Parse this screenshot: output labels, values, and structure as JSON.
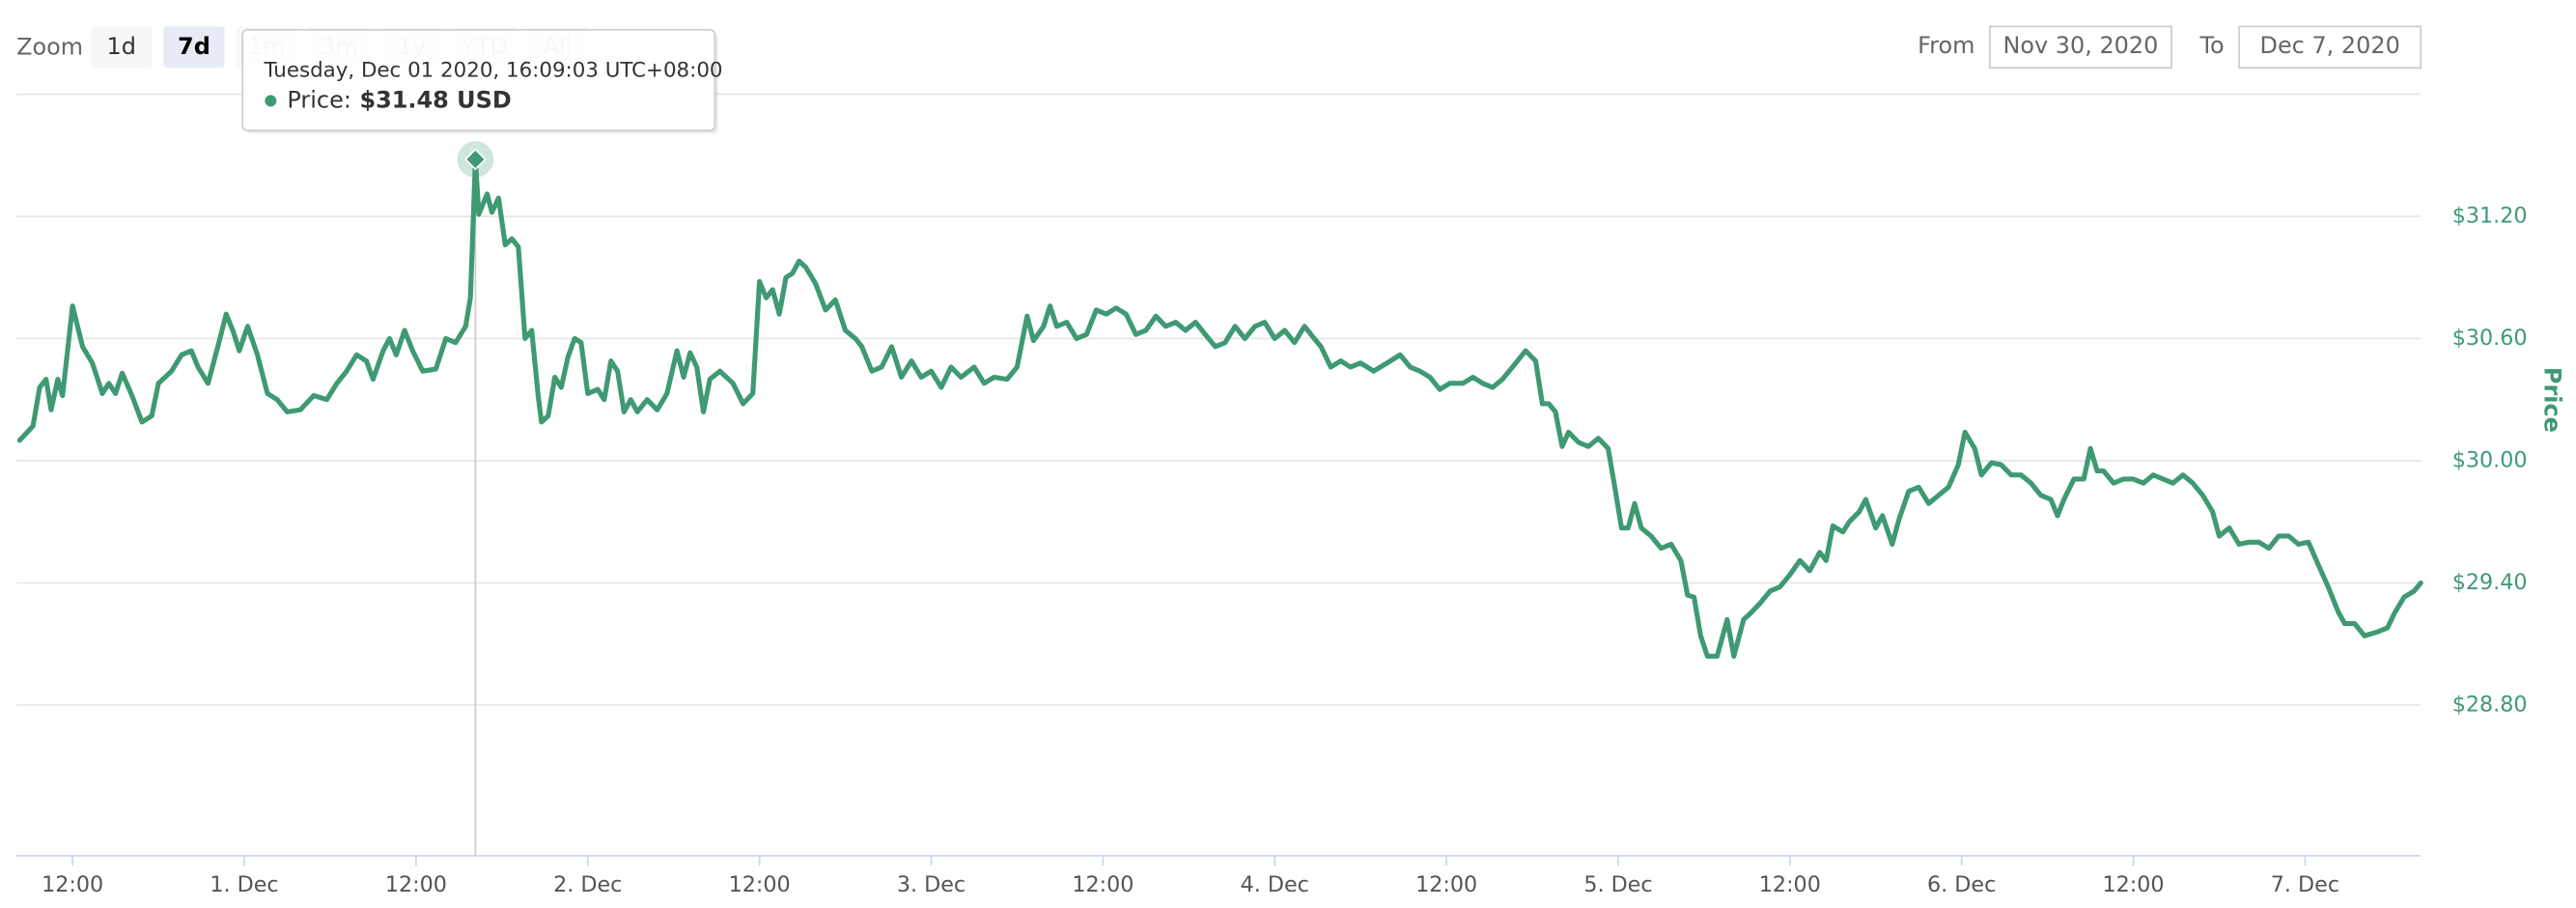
{
  "range_selector": {
    "zoom_label": "Zoom",
    "buttons": [
      "1d",
      "7d",
      "1m",
      "3m",
      "1y",
      "YTD",
      "All"
    ],
    "selected": 1
  },
  "date_range": {
    "from_label": "From",
    "from": "Nov 30, 2020",
    "to_label": "To",
    "to": "Dec 7, 2020"
  },
  "tooltip": {
    "date": "Tuesday, Dec 01 2020, 16:09:03 UTC+08:00",
    "label": "Price:",
    "value": "$31.48 USD"
  },
  "chart_data": {
    "type": "line",
    "y_label": "Price",
    "color": "#3f9a73",
    "grid": true,
    "xlim": [
      "2020-11-30T08:05",
      "2020-12-07T08:05"
    ],
    "xticks": [
      {
        "value": "2020-11-30T12:00",
        "label": "12:00"
      },
      {
        "value": "2020-12-01T00:00",
        "label": "1. Dec"
      },
      {
        "value": "2020-12-01T12:00",
        "label": "12:00"
      },
      {
        "value": "2020-12-02T00:00",
        "label": "2. Dec"
      },
      {
        "value": "2020-12-02T12:00",
        "label": "12:00"
      },
      {
        "value": "2020-12-03T00:00",
        "label": "3. Dec"
      },
      {
        "value": "2020-12-03T12:00",
        "label": "12:00"
      },
      {
        "value": "2020-12-04T00:00",
        "label": "4. Dec"
      },
      {
        "value": "2020-12-04T12:00",
        "label": "12:00"
      },
      {
        "value": "2020-12-05T00:00",
        "label": "5. Dec"
      },
      {
        "value": "2020-12-05T12:00",
        "label": "12:00"
      },
      {
        "value": "2020-12-06T00:00",
        "label": "6. Dec"
      },
      {
        "value": "2020-12-06T12:00",
        "label": "12:00"
      },
      {
        "value": "2020-12-07T00:00",
        "label": "7. Dec"
      }
    ],
    "ylim": [
      28.06,
      31.8
    ],
    "yticks": [
      {
        "value": 28.8,
        "label": "$28.80"
      },
      {
        "value": 29.4,
        "label": "$29.40"
      },
      {
        "value": 30,
        "label": "$30.00"
      },
      {
        "value": 30.6,
        "label": "$30.60"
      },
      {
        "value": 31.2,
        "label": "$31.20"
      }
    ],
    "x": [
      "2020-11-30T08:18",
      "2020-11-30T09:14",
      "2020-11-30T09:42",
      "2020-11-30T10:09",
      "2020-11-30T10:30",
      "2020-11-30T10:58",
      "2020-11-30T11:18",
      "2020-11-30T12:00",
      "2020-11-30T12:42",
      "2020-11-30T13:23",
      "2020-11-30T14:05",
      "2020-11-30T14:32",
      "2020-11-30T15:00",
      "2020-11-30T15:28",
      "2020-11-30T16:09",
      "2020-11-30T16:51",
      "2020-11-30T17:32",
      "2020-11-30T18:00",
      "2020-11-30T18:55",
      "2020-11-30T19:37",
      "2020-11-30T20:18",
      "2020-11-30T20:46",
      "2020-11-30T21:28",
      "2020-11-30T22:09",
      "2020-11-30T22:44",
      "2020-11-30T23:12",
      "2020-11-30T23:39",
      "2020-12-01T00:14",
      "2020-12-01T00:55",
      "2020-12-01T01:37",
      "2020-12-01T02:18",
      "2020-12-01T03:00",
      "2020-12-01T03:55",
      "2020-12-01T04:51",
      "2020-12-01T05:46",
      "2020-12-01T06:28",
      "2020-12-01T07:09",
      "2020-12-01T07:51",
      "2020-12-01T08:32",
      "2020-12-01T09:00",
      "2020-12-01T09:42",
      "2020-12-01T10:09",
      "2020-12-01T10:37",
      "2020-12-01T11:12",
      "2020-12-01T11:46",
      "2020-12-01T12:28",
      "2020-12-01T13:23",
      "2020-12-01T14:05",
      "2020-12-01T14:46",
      "2020-12-01T15:28",
      "2020-12-01T15:48",
      "2020-12-01T16:09",
      "2020-12-01T16:23",
      "2020-12-01T16:58",
      "2020-12-01T17:18",
      "2020-12-01T17:46",
      "2020-12-01T18:14",
      "2020-12-01T18:42",
      "2020-12-01T19:09",
      "2020-12-01T19:37",
      "2020-12-01T20:05",
      "2020-12-01T20:32",
      "2020-12-01T20:46",
      "2020-12-01T21:14",
      "2020-12-01T21:42",
      "2020-12-01T22:09",
      "2020-12-01T22:37",
      "2020-12-01T23:05",
      "2020-12-01T23:32",
      "2020-12-02T00:00",
      "2020-12-02T00:42",
      "2020-12-02T01:09",
      "2020-12-02T01:37",
      "2020-12-02T02:05",
      "2020-12-02T02:32",
      "2020-12-02T03:00",
      "2020-12-02T03:28",
      "2020-12-02T04:09",
      "2020-12-02T04:51",
      "2020-12-02T05:32",
      "2020-12-02T06:14",
      "2020-12-02T06:42",
      "2020-12-02T07:09",
      "2020-12-02T07:37",
      "2020-12-02T08:05",
      "2020-12-02T08:32",
      "2020-12-02T09:14",
      "2020-12-02T10:09",
      "2020-12-02T10:51",
      "2020-12-02T11:32",
      "2020-12-02T12:00",
      "2020-12-02T12:28",
      "2020-12-02T12:55",
      "2020-12-02T13:23",
      "2020-12-02T13:51",
      "2020-12-02T14:18",
      "2020-12-02T14:46",
      "2020-12-02T15:14",
      "2020-12-02T15:55",
      "2020-12-02T16:37",
      "2020-12-02T17:18",
      "2020-12-02T18:00",
      "2020-12-02T18:42",
      "2020-12-02T19:09",
      "2020-12-02T19:51",
      "2020-12-02T20:32",
      "2020-12-02T21:14",
      "2020-12-02T21:55",
      "2020-12-02T22:37",
      "2020-12-02T23:18",
      "2020-12-03T00:00",
      "2020-12-03T00:42",
      "2020-12-03T01:23",
      "2020-12-03T02:05",
      "2020-12-03T03:00",
      "2020-12-03T03:42",
      "2020-12-03T04:23",
      "2020-12-03T05:18",
      "2020-12-03T06:00",
      "2020-12-03T06:42",
      "2020-12-03T07:09",
      "2020-12-03T07:51",
      "2020-12-03T08:18",
      "2020-12-03T08:46",
      "2020-12-03T09:28",
      "2020-12-03T10:09",
      "2020-12-03T10:51",
      "2020-12-03T11:32",
      "2020-12-03T12:14",
      "2020-12-03T12:55",
      "2020-12-03T13:37",
      "2020-12-03T14:18",
      "2020-12-03T15:00",
      "2020-12-03T15:42",
      "2020-12-03T16:23",
      "2020-12-03T17:05",
      "2020-12-03T17:46",
      "2020-12-03T18:28",
      "2020-12-03T19:09",
      "2020-12-03T19:51",
      "2020-12-03T20:32",
      "2020-12-03T21:14",
      "2020-12-03T21:55",
      "2020-12-03T22:37",
      "2020-12-03T23:18",
      "2020-12-04T00:00",
      "2020-12-04T00:42",
      "2020-12-04T01:23",
      "2020-12-04T02:05",
      "2020-12-04T02:46",
      "2020-12-04T03:14",
      "2020-12-04T03:55",
      "2020-12-04T04:37",
      "2020-12-04T05:18",
      "2020-12-04T06:00",
      "2020-12-04T06:55",
      "2020-12-04T07:51",
      "2020-12-04T08:46",
      "2020-12-04T09:28",
      "2020-12-04T10:09",
      "2020-12-04T10:51",
      "2020-12-04T11:32",
      "2020-12-04T12:14",
      "2020-12-04T13:09",
      "2020-12-04T13:51",
      "2020-12-04T14:32",
      "2020-12-04T15:14",
      "2020-12-04T15:55",
      "2020-12-04T16:51",
      "2020-12-04T17:32",
      "2020-12-04T18:14",
      "2020-12-04T18:42",
      "2020-12-04T19:09",
      "2020-12-04T19:37",
      "2020-12-04T20:05",
      "2020-12-04T20:32",
      "2020-12-04T21:14",
      "2020-12-04T21:55",
      "2020-12-04T22:37",
      "2020-12-04T23:18",
      "2020-12-04T23:46",
      "2020-12-05T00:14",
      "2020-12-05T00:42",
      "2020-12-05T01:09",
      "2020-12-05T01:37",
      "2020-12-05T02:18",
      "2020-12-05T03:00",
      "2020-12-05T03:42",
      "2020-12-05T04:23",
      "2020-12-05T04:51",
      "2020-12-05T05:18",
      "2020-12-05T05:46",
      "2020-12-05T06:14",
      "2020-12-05T06:55",
      "2020-12-05T07:37",
      "2020-12-05T08:05",
      "2020-12-05T08:46",
      "2020-12-05T09:14",
      "2020-12-05T09:55",
      "2020-12-05T10:37",
      "2020-12-05T11:18",
      "2020-12-05T12:00",
      "2020-12-05T12:42",
      "2020-12-05T13:23",
      "2020-12-05T14:05",
      "2020-12-05T14:32",
      "2020-12-05T15:00",
      "2020-12-05T15:42",
      "2020-12-05T16:09",
      "2020-12-05T16:51",
      "2020-12-05T17:18",
      "2020-12-05T18:00",
      "2020-12-05T18:28",
      "2020-12-05T19:09",
      "2020-12-05T19:37",
      "2020-12-05T20:18",
      "2020-12-05T21:00",
      "2020-12-05T21:42",
      "2020-12-05T22:23",
      "2020-12-05T23:05",
      "2020-12-05T23:46",
      "2020-12-06T00:14",
      "2020-12-06T00:55",
      "2020-12-06T01:23",
      "2020-12-06T02:05",
      "2020-12-06T02:46",
      "2020-12-06T03:28",
      "2020-12-06T04:09",
      "2020-12-06T04:51",
      "2020-12-06T05:32",
      "2020-12-06T06:14",
      "2020-12-06T06:42",
      "2020-12-06T07:09",
      "2020-12-06T07:51",
      "2020-12-06T08:32",
      "2020-12-06T09:00",
      "2020-12-06T09:28",
      "2020-12-06T09:55",
      "2020-12-06T10:37",
      "2020-12-06T11:18",
      "2020-12-06T12:00",
      "2020-12-06T12:42",
      "2020-12-06T13:23",
      "2020-12-06T14:05",
      "2020-12-06T14:46",
      "2020-12-06T15:28",
      "2020-12-06T16:09",
      "2020-12-06T16:51",
      "2020-12-06T17:32",
      "2020-12-06T18:00",
      "2020-12-06T18:42",
      "2020-12-06T19:23",
      "2020-12-06T20:05",
      "2020-12-06T20:46",
      "2020-12-06T21:28",
      "2020-12-06T22:09",
      "2020-12-06T22:51",
      "2020-12-06T23:32",
      "2020-12-07T00:14",
      "2020-12-07T00:55",
      "2020-12-07T01:37",
      "2020-12-07T02:18",
      "2020-12-07T02:46",
      "2020-12-07T03:28",
      "2020-12-07T04:09",
      "2020-12-07T05:05",
      "2020-12-07T05:46",
      "2020-12-07T06:14",
      "2020-12-07T06:55",
      "2020-12-07T07:37",
      "2020-12-07T08:05"
    ],
    "values": [
      30.1,
      30.17,
      30.36,
      30.4,
      30.25,
      30.4,
      30.32,
      30.76,
      30.56,
      30.48,
      30.33,
      30.38,
      30.33,
      30.43,
      30.32,
      30.19,
      30.22,
      30.38,
      30.44,
      30.52,
      30.54,
      30.46,
      30.38,
      30.56,
      30.72,
      30.64,
      30.54,
      30.66,
      30.52,
      30.33,
      30.3,
      30.24,
      30.25,
      30.32,
      30.3,
      30.38,
      30.44,
      30.52,
      30.49,
      30.4,
      30.54,
      30.6,
      30.52,
      30.64,
      30.54,
      30.44,
      30.45,
      30.6,
      30.58,
      30.66,
      30.8,
      31.48,
      31.21,
      31.31,
      31.22,
      31.29,
      31.06,
      31.09,
      31.05,
      30.6,
      30.64,
      30.32,
      30.19,
      30.22,
      30.41,
      30.36,
      30.51,
      30.6,
      30.58,
      30.33,
      30.35,
      30.3,
      30.49,
      30.44,
      30.24,
      30.3,
      30.24,
      30.3,
      30.25,
      30.33,
      30.54,
      30.41,
      30.53,
      30.46,
      30.24,
      30.4,
      30.44,
      30.38,
      30.28,
      30.33,
      30.88,
      30.8,
      30.84,
      30.72,
      30.9,
      30.92,
      30.98,
      30.95,
      30.87,
      30.74,
      30.79,
      30.64,
      30.6,
      30.56,
      30.44,
      30.46,
      30.56,
      30.41,
      30.49,
      30.41,
      30.44,
      30.36,
      30.46,
      30.41,
      30.46,
      30.38,
      30.41,
      30.4,
      30.46,
      30.71,
      30.59,
      30.66,
      30.76,
      30.66,
      30.68,
      30.6,
      30.62,
      30.74,
      30.72,
      30.75,
      30.72,
      30.62,
      30.64,
      30.71,
      30.66,
      30.68,
      30.64,
      30.68,
      30.62,
      30.56,
      30.58,
      30.66,
      30.6,
      30.66,
      30.68,
      30.6,
      30.64,
      30.58,
      30.66,
      30.6,
      30.56,
      30.46,
      30.49,
      30.46,
      30.48,
      30.44,
      30.48,
      30.52,
      30.46,
      30.44,
      30.41,
      30.35,
      30.38,
      30.38,
      30.41,
      30.38,
      30.36,
      30.4,
      30.48,
      30.54,
      30.49,
      30.28,
      30.28,
      30.24,
      30.07,
      30.14,
      30.09,
      30.07,
      30.11,
      30.06,
      29.87,
      29.67,
      29.67,
      29.79,
      29.67,
      29.63,
      29.57,
      29.59,
      29.51,
      29.34,
      29.33,
      29.14,
      29.04,
      29.04,
      29.22,
      29.04,
      29.22,
      29.25,
      29.3,
      29.36,
      29.38,
      29.44,
      29.51,
      29.46,
      29.55,
      29.51,
      29.68,
      29.65,
      29.7,
      29.75,
      29.81,
      29.67,
      29.73,
      29.59,
      29.71,
      29.85,
      29.87,
      29.79,
      29.83,
      29.87,
      29.98,
      30.14,
      30.06,
      29.93,
      29.99,
      29.98,
      29.93,
      29.93,
      29.89,
      29.83,
      29.81,
      29.73,
      29.81,
      29.91,
      29.91,
      30.06,
      29.95,
      29.95,
      29.89,
      29.91,
      29.91,
      29.89,
      29.93,
      29.91,
      29.89,
      29.93,
      29.89,
      29.83,
      29.75,
      29.63,
      29.67,
      29.59,
      29.6,
      29.6,
      29.57,
      29.63,
      29.63,
      29.59,
      29.6,
      29.49,
      29.38,
      29.26,
      29.2,
      29.2,
      29.14,
      29.16,
      29.18,
      29.25,
      29.33,
      29.36,
      29.4
    ]
  }
}
